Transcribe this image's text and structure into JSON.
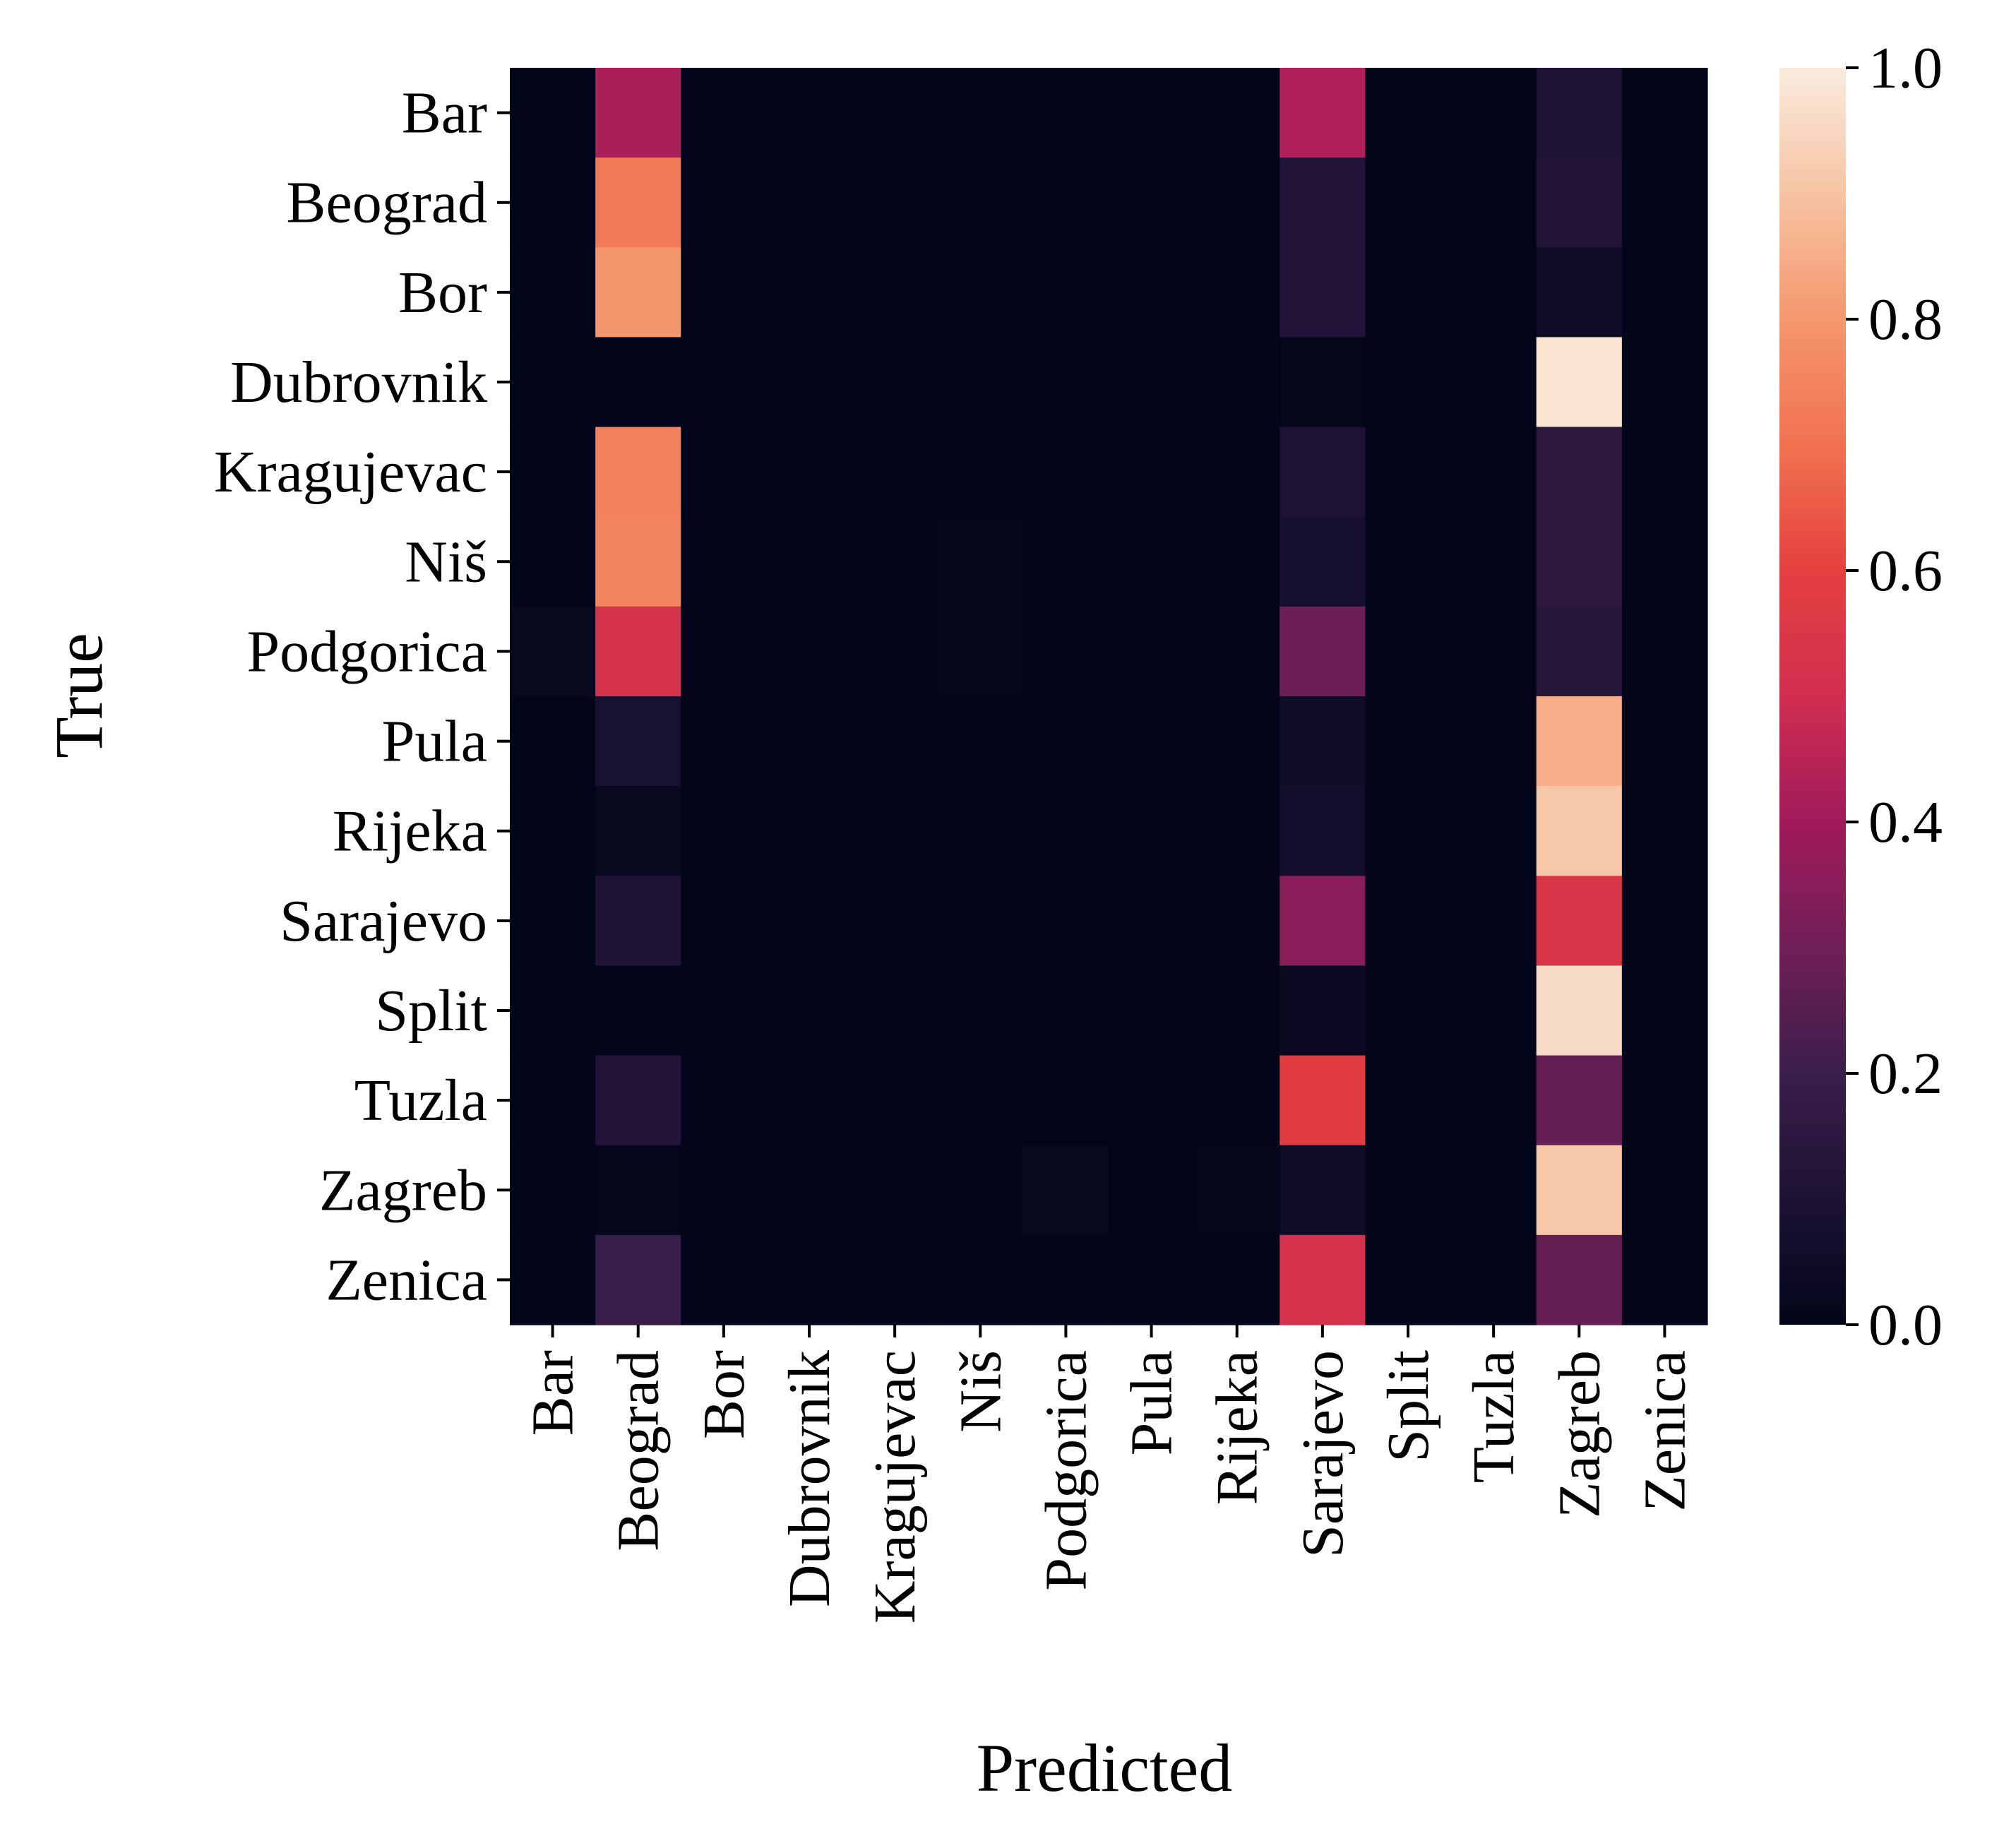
{
  "chart_data": {
    "type": "heatmap",
    "xlabel": "Predicted",
    "ylabel": "True",
    "x_categories": [
      "Bar",
      "Beograd",
      "Bor",
      "Dubrovnik",
      "Kragujevac",
      "Niš",
      "Podgorica",
      "Pula",
      "Rijeka",
      "Sarajevo",
      "Split",
      "Tuzla",
      "Zagreb",
      "Zenica"
    ],
    "y_categories": [
      "Bar",
      "Beograd",
      "Bor",
      "Dubrovnik",
      "Kragujevac",
      "Niš",
      "Podgorica",
      "Pula",
      "Rijeka",
      "Sarajevo",
      "Split",
      "Tuzla",
      "Zagreb",
      "Zenica"
    ],
    "values": [
      [
        0.0,
        0.42,
        0.0,
        0.0,
        0.0,
        0.0,
        0.0,
        0.0,
        0.0,
        0.43,
        0.0,
        0.0,
        0.1,
        0.0
      ],
      [
        0.0,
        0.72,
        0.0,
        0.0,
        0.0,
        0.0,
        0.0,
        0.0,
        0.0,
        0.12,
        0.0,
        0.0,
        0.12,
        0.0
      ],
      [
        0.0,
        0.8,
        0.0,
        0.0,
        0.0,
        0.0,
        0.0,
        0.0,
        0.0,
        0.12,
        0.0,
        0.0,
        0.05,
        0.0
      ],
      [
        0.0,
        0.0,
        0.0,
        0.0,
        0.0,
        0.0,
        0.0,
        0.0,
        0.0,
        0.01,
        0.0,
        0.0,
        0.98,
        0.0
      ],
      [
        0.0,
        0.74,
        0.0,
        0.0,
        0.0,
        0.0,
        0.0,
        0.0,
        0.0,
        0.1,
        0.0,
        0.0,
        0.16,
        0.0
      ],
      [
        0.0,
        0.75,
        0.0,
        0.0,
        0.0,
        0.01,
        0.0,
        0.0,
        0.0,
        0.08,
        0.0,
        0.0,
        0.16,
        0.0
      ],
      [
        0.02,
        0.52,
        0.0,
        0.0,
        0.0,
        0.01,
        0.0,
        0.0,
        0.0,
        0.29,
        0.0,
        0.0,
        0.14,
        0.0
      ],
      [
        0.0,
        0.09,
        0.0,
        0.0,
        0.0,
        0.0,
        0.0,
        0.0,
        0.0,
        0.05,
        0.0,
        0.0,
        0.85,
        0.0
      ],
      [
        0.0,
        0.02,
        0.0,
        0.0,
        0.0,
        0.0,
        0.0,
        0.0,
        0.0,
        0.06,
        0.0,
        0.0,
        0.91,
        0.0
      ],
      [
        0.0,
        0.11,
        0.0,
        0.0,
        0.0,
        0.0,
        0.0,
        0.0,
        0.0,
        0.35,
        0.0,
        0.0,
        0.54,
        0.0
      ],
      [
        0.0,
        0.0,
        0.0,
        0.0,
        0.0,
        0.0,
        0.0,
        0.0,
        0.0,
        0.03,
        0.0,
        0.0,
        0.96,
        0.0
      ],
      [
        0.0,
        0.12,
        0.0,
        0.0,
        0.0,
        0.0,
        0.0,
        0.0,
        0.0,
        0.58,
        0.0,
        0.0,
        0.28,
        0.0
      ],
      [
        0.0,
        0.01,
        0.0,
        0.0,
        0.0,
        0.0,
        0.02,
        0.0,
        0.01,
        0.05,
        0.0,
        0.0,
        0.91,
        0.0
      ],
      [
        0.0,
        0.19,
        0.0,
        0.0,
        0.0,
        0.0,
        0.0,
        0.0,
        0.0,
        0.52,
        0.0,
        0.0,
        0.28,
        0.0
      ]
    ],
    "colorbar": {
      "vmin": 0.0,
      "vmax": 1.0,
      "ticks": [
        0.0,
        0.2,
        0.4,
        0.6,
        0.8,
        1.0
      ],
      "tick_labels": [
        "0.0",
        "0.2",
        "0.4",
        "0.6",
        "0.8",
        "1.0"
      ]
    },
    "colormap_stops": [
      {
        "v": 0.0,
        "color": "#03051a"
      },
      {
        "v": 0.1,
        "color": "#1c1234"
      },
      {
        "v": 0.2,
        "color": "#3b1e4a"
      },
      {
        "v": 0.3,
        "color": "#701f57"
      },
      {
        "v": 0.4,
        "color": "#a11a5b"
      },
      {
        "v": 0.5,
        "color": "#d12e50"
      },
      {
        "v": 0.6,
        "color": "#e5403f"
      },
      {
        "v": 0.7,
        "color": "#f1724f"
      },
      {
        "v": 0.8,
        "color": "#f5976d"
      },
      {
        "v": 0.9,
        "color": "#f6c4a3"
      },
      {
        "v": 1.0,
        "color": "#faebdd"
      }
    ]
  }
}
